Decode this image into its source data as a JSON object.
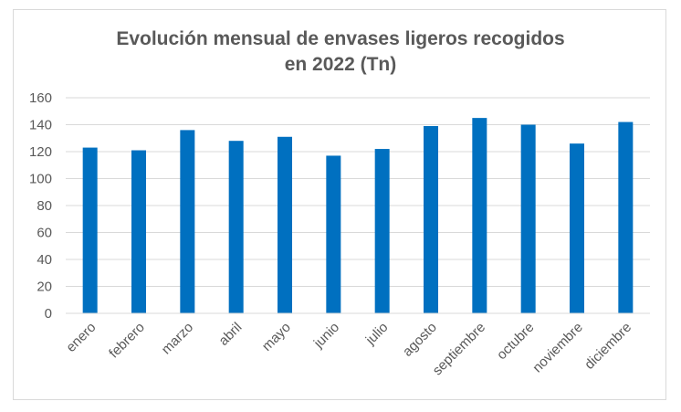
{
  "chart_data": {
    "type": "bar",
    "title": "Evolución mensual de envases ligeros recogidos en 2022 (Tn)",
    "title_lines": [
      "Evolución mensual de envases ligeros recogidos",
      "en 2022 (Tn)"
    ],
    "categories": [
      "enero",
      "febrero",
      "marzo",
      "abril",
      "mayo",
      "junio",
      "julio",
      "agosto",
      "septiembre",
      "octubre",
      "noviembre",
      "diciembre"
    ],
    "values": [
      123,
      121,
      136,
      128,
      131,
      117,
      122,
      139,
      145,
      140,
      126,
      142
    ],
    "xlabel": "",
    "ylabel": "",
    "ylim": [
      0,
      160
    ],
    "yticks": [
      "0",
      "20",
      "40",
      "60",
      "80",
      "100",
      "120",
      "140",
      "160"
    ],
    "grid": true,
    "legend": "none",
    "colors": {
      "bar": "#0070c0",
      "grid": "#d9d9d9",
      "text": "#595959"
    }
  }
}
